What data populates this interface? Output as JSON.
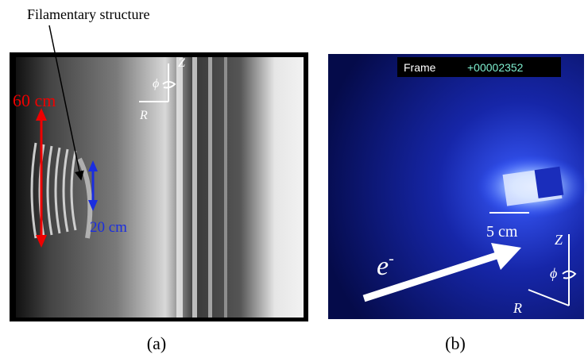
{
  "panel_a": {
    "annotation": "Filamentary structure",
    "height_label": "60 cm",
    "width_label": "20 cm",
    "axis_z": "Z",
    "axis_phi": "ϕ",
    "axis_r": "R",
    "caption": "(a)"
  },
  "panel_b": {
    "frame_label": "Frame",
    "frame_number": "+00002352",
    "scale_label": "5 cm",
    "electron_label": "e",
    "electron_charge": "-",
    "axis_z": "Z",
    "axis_phi": "ϕ",
    "axis_r": "R",
    "caption": "(b)"
  }
}
